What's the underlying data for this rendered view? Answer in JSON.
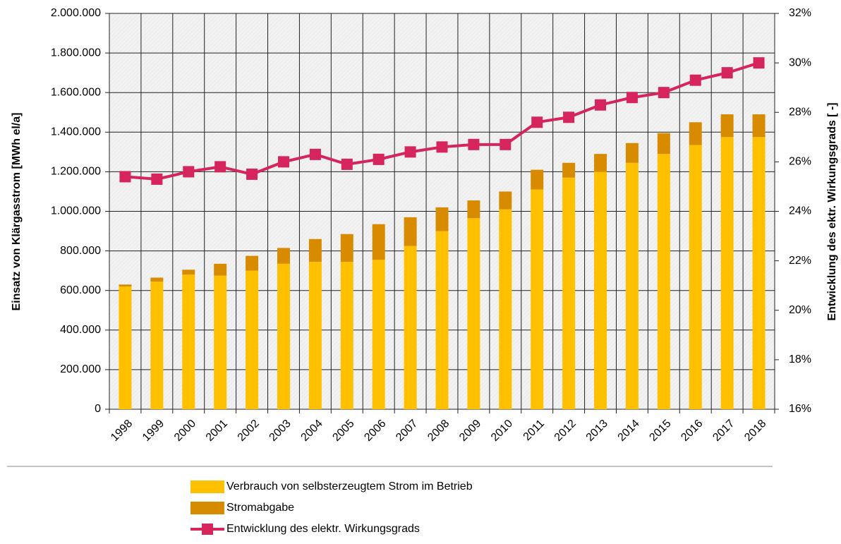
{
  "chart_data": {
    "type": "bar",
    "stacked": true,
    "y_label": "Einsatz von Klärgasstrom [MWh el/a]",
    "y2_label": "Entwicklung des ektr. Wirkungsgrads [ -]",
    "categories": [
      "1998",
      "1999",
      "2000",
      "2001",
      "2002",
      "2003",
      "2004",
      "2005",
      "2006",
      "2007",
      "2008",
      "2009",
      "2010",
      "2011",
      "2012",
      "2013",
      "2014",
      "2015",
      "2016",
      "2017",
      "2018"
    ],
    "series": [
      {
        "name": "Verbrauch von selbsterzeugtem Strom im Betrieb",
        "color": "#ffc000",
        "type": "bar",
        "values": [
          620000,
          645000,
          680000,
          675000,
          700000,
          735000,
          745000,
          745000,
          755000,
          825000,
          900000,
          965000,
          1010000,
          1110000,
          1170000,
          1200000,
          1245000,
          1290000,
          1335000,
          1375000,
          1375000
        ]
      },
      {
        "name": "Stromabgabe",
        "color": "#d98b00",
        "type": "bar",
        "values": [
          10000,
          20000,
          25000,
          60000,
          75000,
          80000,
          115000,
          140000,
          180000,
          145000,
          120000,
          90000,
          90000,
          100000,
          75000,
          90000,
          100000,
          105000,
          115000,
          115000,
          115000
        ]
      },
      {
        "name": "Entwicklung des elektr. Wirkungsgrads",
        "color": "#d6245d",
        "type": "line",
        "axis": "y2",
        "values": [
          25.4,
          25.3,
          25.6,
          25.8,
          25.5,
          26.0,
          26.3,
          25.9,
          26.1,
          26.4,
          26.6,
          26.7,
          26.7,
          27.6,
          27.8,
          28.3,
          28.6,
          28.8,
          29.3,
          29.6,
          30.0
        ]
      }
    ],
    "ylim": [
      0,
      2000000
    ],
    "yticks": [
      0,
      {
        "value": 200000,
        "label": "200.000"
      },
      {
        "value": 400000,
        "label": "400.000"
      },
      {
        "value": 600000,
        "label": "600.000"
      },
      {
        "value": 800000,
        "label": "800.000"
      },
      {
        "value": 1000000,
        "label": "1.000.000"
      },
      {
        "value": 1200000,
        "label": "1.200.000"
      },
      {
        "value": 1400000,
        "label": "1.400.000"
      },
      {
        "value": 1600000,
        "label": "1.600.000"
      },
      {
        "value": 1800000,
        "label": "1.800.000"
      },
      {
        "value": 2000000,
        "label": "2.000.000"
      }
    ],
    "y2lim": [
      16,
      32
    ],
    "y2ticks": [
      {
        "value": 16,
        "label": "16%"
      },
      {
        "value": 18,
        "label": "18%"
      },
      {
        "value": 20,
        "label": "20%"
      },
      {
        "value": 22,
        "label": "22%"
      },
      {
        "value": 24,
        "label": "24%"
      },
      {
        "value": 26,
        "label": "26%"
      },
      {
        "value": 28,
        "label": "28%"
      },
      {
        "value": 30,
        "label": "30%"
      },
      {
        "value": 32,
        "label": "32%"
      }
    ],
    "grid": true,
    "legend": "bottom"
  }
}
